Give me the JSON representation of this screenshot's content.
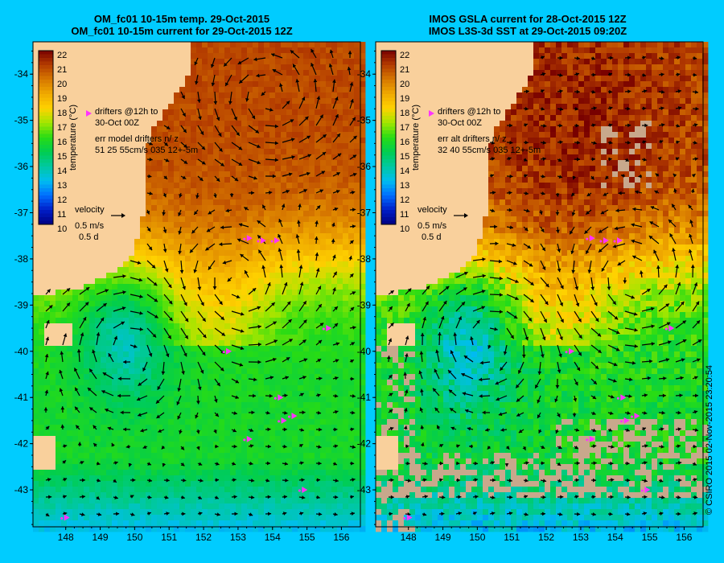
{
  "chart_data": [
    {
      "type": "heatmap",
      "title_lines": [
        "OM_fc01 10-15m temp. 29-Oct-2015",
        "OM_fc01 10-15m current for 29-Oct-2015 12Z"
      ],
      "x_ticks": [
        148,
        149,
        150,
        151,
        152,
        153,
        154,
        155,
        156
      ],
      "y_ticks": [
        -34,
        -35,
        -36,
        -37,
        -38,
        -39,
        -40,
        -41,
        -42,
        -43
      ],
      "xlim": [
        147.05,
        156.55
      ],
      "ylim": [
        -43.8,
        -33.3
      ],
      "colorbar": {
        "label": "temperature (°C)",
        "min": 10,
        "max": 22,
        "ticks": [
          22,
          21,
          20,
          19,
          18,
          17,
          16,
          15,
          14,
          13,
          12,
          11,
          10
        ]
      },
      "annotations": [
        "drifters @12h to",
        "30-Oct 00Z",
        "err model drifters n/ z",
        "51 25 55cm/s 035 12+-5m"
      ],
      "velocity_key": [
        "velocity",
        "0.5 m/s",
        "0.5 d"
      ],
      "eddies": [
        {
          "lon": 153.9,
          "lat": -34.6,
          "type": "warm-core"
        },
        {
          "lon": 152.9,
          "lat": -38.6,
          "type": "warm-core"
        },
        {
          "lon": 149.9,
          "lat": -39.9,
          "type": "cold-core"
        }
      ]
    },
    {
      "type": "heatmap",
      "title_lines": [
        "IMOS GSLA current for 28-Oct-2015 12Z",
        "IMOS L3S-3d SST at 29-Oct-2015 09:20Z"
      ],
      "x_ticks": [
        148,
        149,
        150,
        151,
        152,
        153,
        154,
        155,
        156
      ],
      "y_ticks": [
        -34,
        -35,
        -36,
        -37,
        -38,
        -39,
        -40,
        -41,
        -42,
        -43
      ],
      "xlim": [
        147.05,
        156.55
      ],
      "ylim": [
        -43.8,
        -33.3
      ],
      "colorbar": {
        "label": "temperature (°C)",
        "min": 10,
        "max": 22,
        "ticks": [
          22,
          21,
          20,
          19,
          18,
          17,
          16,
          15,
          14,
          13,
          12,
          11,
          10
        ]
      },
      "annotations": [
        "drifters @12h to",
        "30-Oct 00Z",
        "err alt drifters n/ z",
        "32 40 55cm/s 035 12+-5m"
      ],
      "velocity_key": [
        "velocity",
        "0.5 m/s",
        "0.5 d"
      ],
      "eddies": [
        {
          "lon": 154.5,
          "lat": -38.5,
          "type": "warm-core"
        },
        {
          "lon": 150.3,
          "lat": -39.7,
          "type": "cold-core"
        }
      ]
    }
  ],
  "credit": "© CSIRO 2015   02-Nov-2015 23:20:54",
  "colors": {
    "background": "#00ccff",
    "land": "#f9d09c",
    "drifter": "#ff33ff",
    "cloud": "#c8a88c"
  }
}
